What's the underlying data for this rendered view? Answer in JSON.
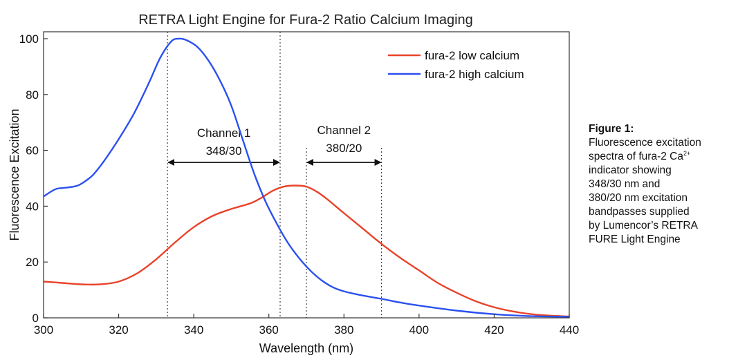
{
  "chart_data": {
    "type": "line",
    "title": "RETRA Light Engine for Fura-2 Ratio Calcium Imaging",
    "xlabel": "Wavelength (nm)",
    "ylabel": "Fluorescence Excitation",
    "xlim": [
      300,
      440
    ],
    "ylim": [
      0,
      100
    ],
    "xticks": [
      300,
      320,
      340,
      360,
      380,
      400,
      420,
      440
    ],
    "yticks": [
      0,
      20,
      40,
      60,
      80,
      100
    ],
    "grid": false,
    "legend_position": "top-right",
    "series": [
      {
        "name": "fura-2 low calcium",
        "color": "#e8432a",
        "x": [
          300,
          305,
          310,
          315,
          320,
          325,
          330,
          335,
          340,
          345,
          350,
          355,
          358,
          361,
          364,
          367,
          370,
          373,
          376,
          380,
          385,
          390,
          395,
          400,
          405,
          410,
          415,
          420,
          425,
          430,
          435,
          440
        ],
        "y": [
          13,
          12.5,
          12,
          12,
          13,
          16,
          21,
          27,
          32.5,
          36.5,
          39,
          41,
          43,
          45.5,
          47,
          47.4,
          47,
          45,
          42,
          37.5,
          32,
          26.5,
          21.5,
          17,
          12.5,
          9,
          6,
          3.8,
          2.3,
          1.3,
          0.8,
          0.5
        ]
      },
      {
        "name": "fura-2 high calcium",
        "color": "#2b50f0",
        "x": [
          300,
          303,
          305,
          308,
          310,
          313,
          316,
          320,
          324,
          328,
          331,
          334,
          336,
          338,
          341,
          344,
          347,
          350,
          353,
          356,
          359,
          362,
          365,
          368,
          371,
          374,
          377,
          380,
          385,
          390,
          395,
          400,
          410,
          420,
          430,
          440
        ],
        "y": [
          43.5,
          46,
          46.5,
          47,
          48,
          51,
          56,
          64,
          73,
          84,
          93,
          99,
          100,
          99.5,
          97,
          92,
          85,
          76,
          64,
          52,
          42,
          34,
          27,
          21.5,
          17,
          13.5,
          11,
          9.5,
          8,
          6.8,
          5.5,
          4.4,
          2.6,
          1.3,
          0.6,
          0.4
        ]
      }
    ],
    "channels": [
      {
        "name": "Channel 1",
        "band": "348/30",
        "from": 333,
        "to": 363
      },
      {
        "name": "Channel 2",
        "band": "380/20",
        "from": 370,
        "to": 390
      }
    ]
  },
  "caption": {
    "title": "Figure 1:",
    "line1": "Fluorescence excitation",
    "line2_prefix": "spectra of fura-2 Ca",
    "line2_sup": "2+",
    "line3": "indicator showing",
    "line4": "348/30 nm and",
    "line5": "380/20 nm excitation",
    "line6": "bandpasses supplied",
    "line7": "by Lumencor’s RETRA",
    "line8": "FURE Light Engine"
  }
}
